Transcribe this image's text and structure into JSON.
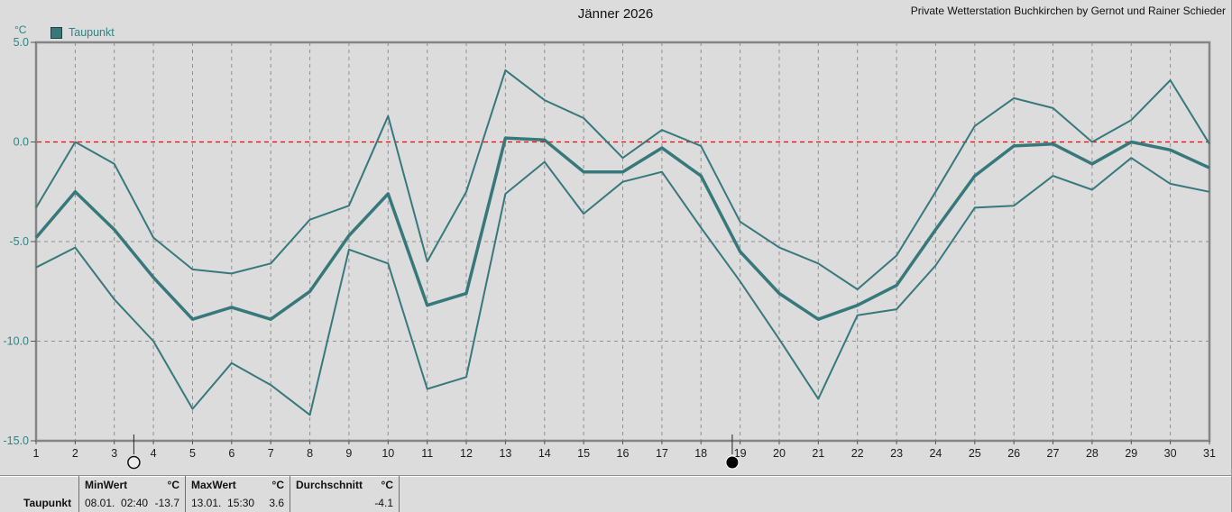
{
  "header": {
    "title": "Jänner 2026",
    "credit": "Private Wetterstation Buchkirchen by Gernot und Rainer Schieder"
  },
  "legend": {
    "label": "Taupunkt"
  },
  "axis_unit": "°C",
  "colors": {
    "line": "#37797B",
    "text_teal": "#2E8484",
    "x_label": "#1c1c1c",
    "grid": "#909090",
    "border": "#858585",
    "zero_line": "#FF0000",
    "background": "#DCDCDC"
  },
  "chart_data": {
    "type": "line",
    "title": "Jänner 2026",
    "xlabel": "",
    "ylabel": "°C",
    "ylim": [
      -15,
      5
    ],
    "yticks": [
      5.0,
      0.0,
      -5.0,
      -10.0,
      -15.0
    ],
    "ytick_labels": [
      "5.0",
      "0.0",
      "-5.0",
      "-10.0",
      "-15.0"
    ],
    "grid": true,
    "legend_position": "top-left",
    "zero_line": 0.0,
    "x": [
      1,
      2,
      3,
      4,
      5,
      6,
      7,
      8,
      9,
      10,
      11,
      12,
      13,
      14,
      15,
      16,
      17,
      18,
      19,
      20,
      21,
      22,
      23,
      24,
      25,
      26,
      27,
      28,
      29,
      30,
      31
    ],
    "series": [
      {
        "name": "Taupunkt Maximum",
        "values": [
          -3.3,
          0.0,
          -1.1,
          -4.8,
          -6.4,
          -6.6,
          -6.1,
          -3.9,
          -3.2,
          1.3,
          -6.0,
          -2.5,
          3.6,
          2.1,
          1.2,
          -0.8,
          0.6,
          -0.2,
          -4.0,
          -5.3,
          -6.1,
          -7.4,
          -5.7,
          -2.5,
          0.8,
          2.2,
          1.7,
          0.0,
          1.1,
          3.1,
          -0.1
        ]
      },
      {
        "name": "Taupunkt Mittel",
        "values": [
          -4.8,
          -2.5,
          -4.4,
          -6.8,
          -8.9,
          -8.3,
          -8.9,
          -7.5,
          -4.7,
          -2.6,
          -8.2,
          -7.6,
          0.2,
          0.1,
          -1.5,
          -1.5,
          -0.3,
          -1.7,
          -5.5,
          -7.6,
          -8.9,
          -8.2,
          -7.2,
          -4.4,
          -1.7,
          -0.2,
          -0.1,
          -1.1,
          0.0,
          -0.4,
          -1.3
        ]
      },
      {
        "name": "Taupunkt Minimum",
        "values": [
          -6.3,
          -5.3,
          -7.9,
          -10.0,
          -13.4,
          -11.1,
          -12.2,
          -13.7,
          -5.4,
          -6.1,
          -12.4,
          -11.8,
          -2.6,
          -1.0,
          -3.6,
          -2.0,
          -1.5,
          -4.3,
          -7.0,
          -9.9,
          -12.9,
          -8.7,
          -8.4,
          -6.2,
          -3.3,
          -3.2,
          -1.7,
          -2.4,
          -0.8,
          -2.1,
          -2.5
        ]
      }
    ],
    "moon_markers": [
      {
        "x": 3.5,
        "phase": "full-moon"
      },
      {
        "x": 18.8,
        "phase": "new-moon"
      }
    ]
  },
  "stats": {
    "row_label": "Taupunkt",
    "columns": [
      {
        "header": "MinWert",
        "unit": "°C",
        "datetime": "08.01.  02:40",
        "value": "-13.7"
      },
      {
        "header": "MaxWert",
        "unit": "°C",
        "datetime": "13.01.  15:30",
        "value": "3.6"
      },
      {
        "header": "Durchschnitt",
        "unit": "°C",
        "datetime": "",
        "value": "-4.1"
      }
    ]
  }
}
